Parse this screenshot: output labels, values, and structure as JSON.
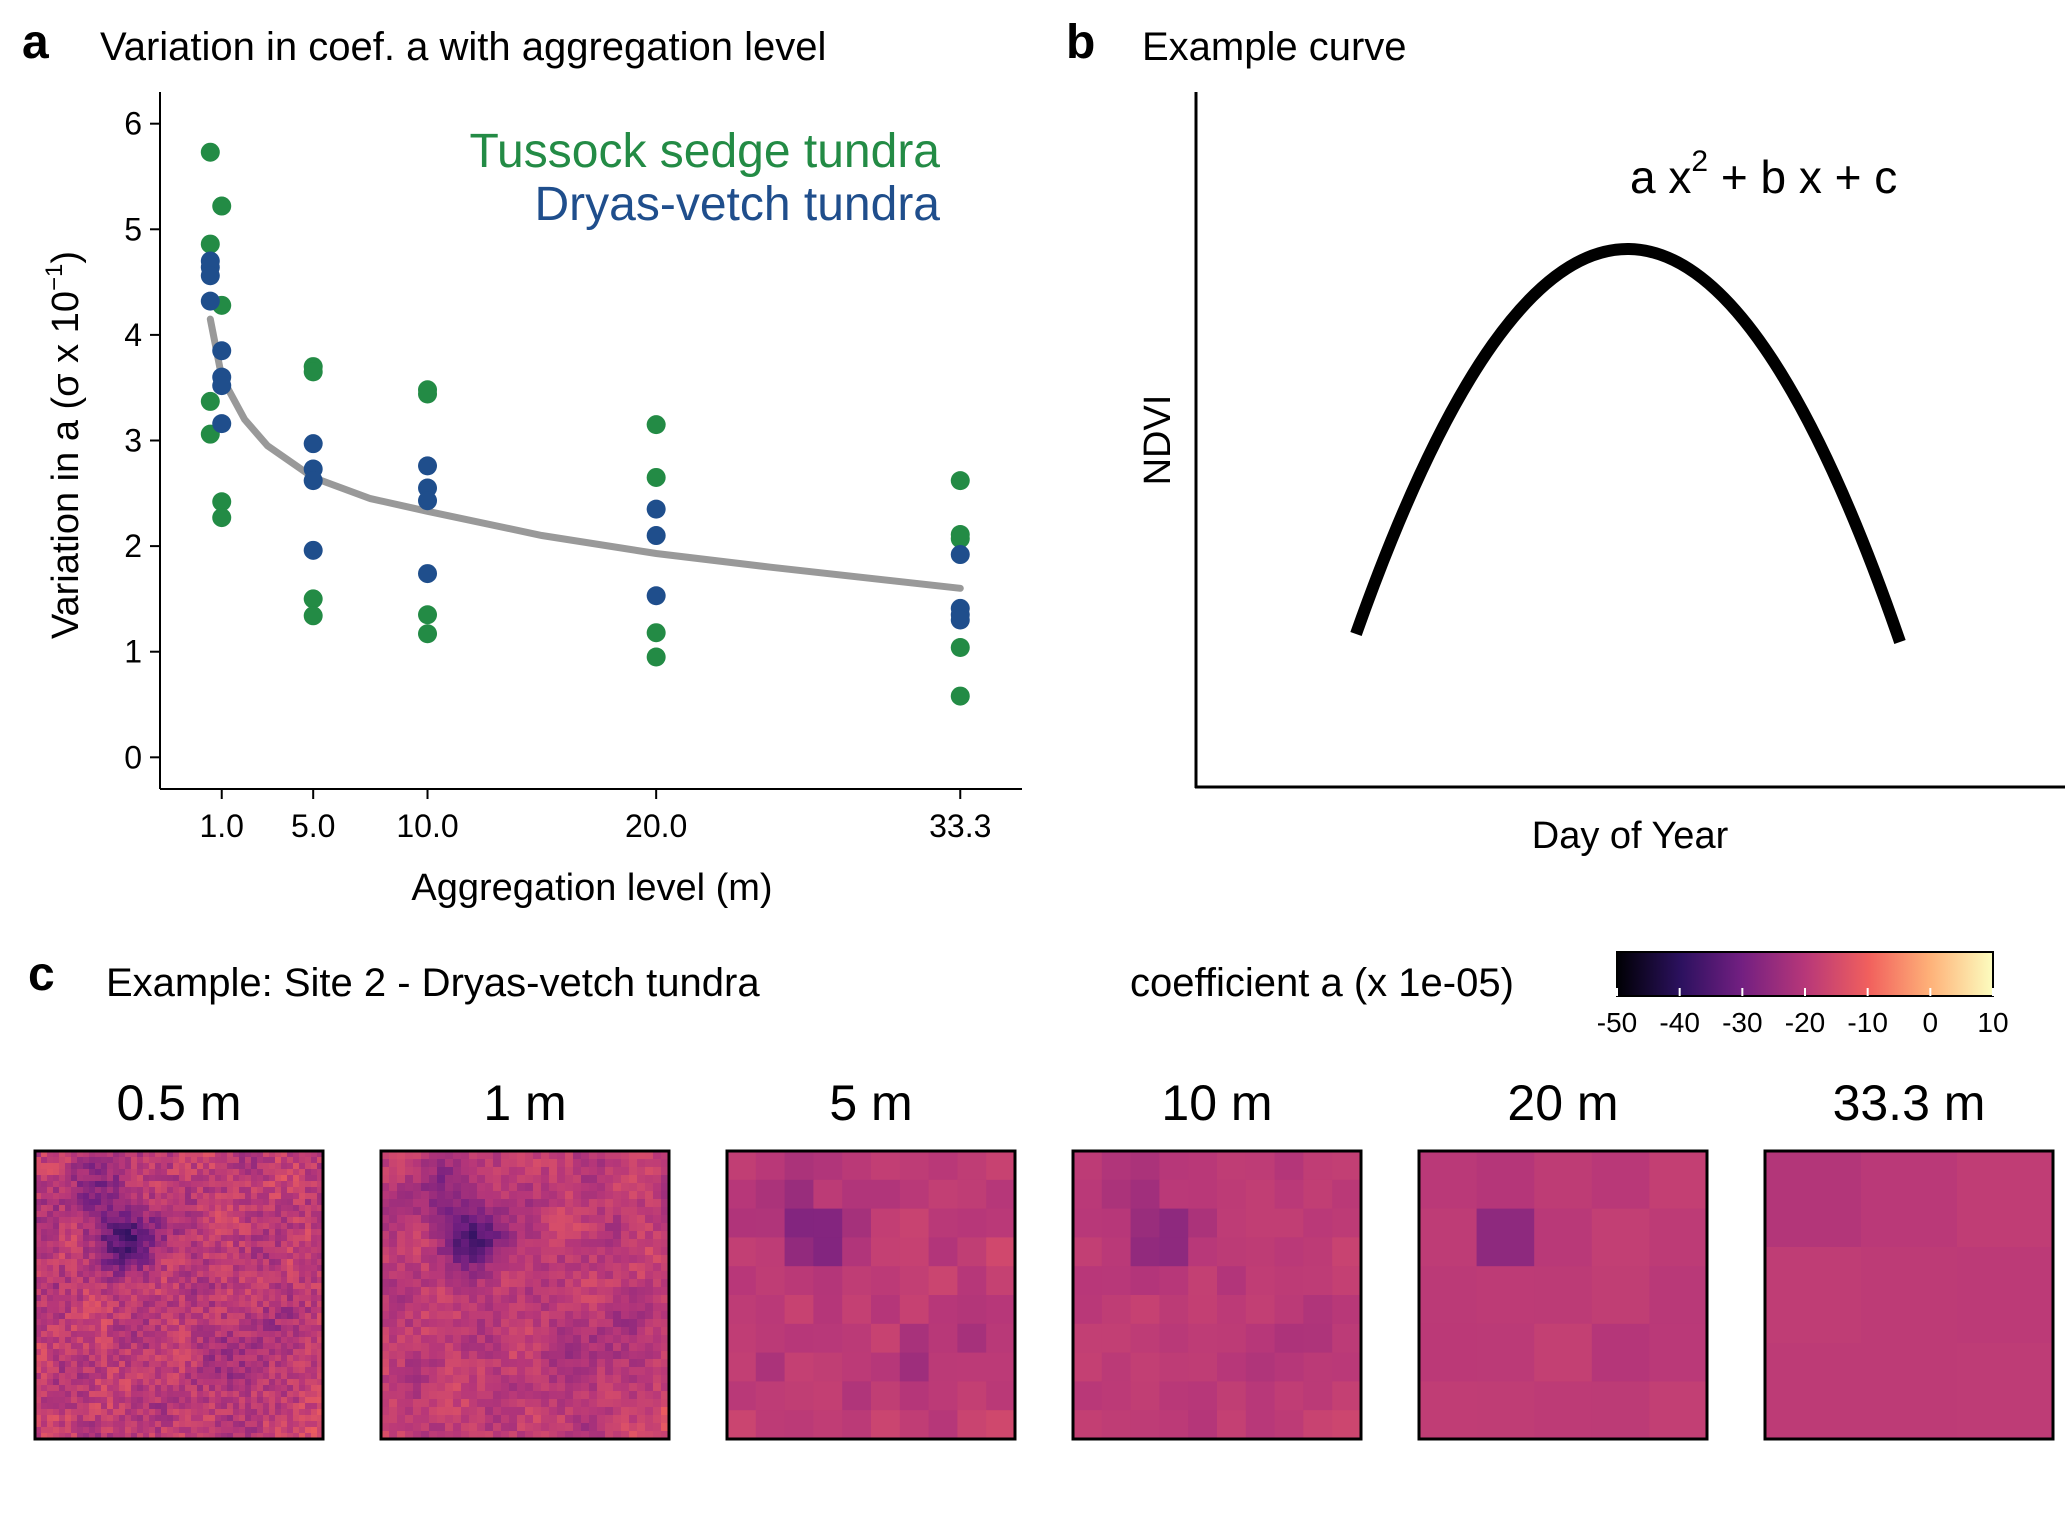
{
  "panel_a": {
    "letter": "a",
    "title": "Variation in coef. a with aggregation level",
    "legend": [
      {
        "label": "Tussock sedge tundra",
        "color": "#238b45"
      },
      {
        "label": "Dryas-vetch tundra",
        "color": "#1f4e8c"
      }
    ]
  },
  "panel_b": {
    "letter": "b",
    "title": "Example curve",
    "ylabel": "NDVI",
    "xlabel": "Day of Year",
    "equation": {
      "a": "a x",
      "sup": "2",
      "rest": " + b x + c"
    }
  },
  "panel_c": {
    "letter": "c",
    "title": "Example: Site 2 - Dryas-vetch tundra",
    "colorbar_title": "coefficient a (x 1e-05)",
    "colorbar_ticks": [
      "-50",
      "-40",
      "-30",
      "-20",
      "-10",
      "0",
      "10"
    ],
    "colormap": [
      "#000004",
      "#2c115f",
      "#721f81",
      "#b73779",
      "#f1605d",
      "#feb078",
      "#fcfdbf"
    ],
    "maps": [
      {
        "label": "0.5 m",
        "grid": 48
      },
      {
        "label": "1 m",
        "grid": 36
      },
      {
        "label": "5 m",
        "grid": 10
      },
      {
        "label": "10 m",
        "grid": 10
      },
      {
        "label": "20 m",
        "grid": 5
      },
      {
        "label": "33.3 m",
        "grid": 3
      }
    ]
  },
  "chart_data": {
    "type": "scatter",
    "title": "Variation in coef. a with aggregation level",
    "xlabel": "Aggregation level (m)",
    "ylabel": "Variation in a (σ x 10⁻¹)",
    "ylabel_parts": {
      "main": "Variation in a (σ x 10",
      "sup": "−1",
      "close": ")"
    },
    "x_ticks": [
      1.0,
      5.0,
      10.0,
      20.0,
      33.3
    ],
    "x_tick_labels": [
      "1.0",
      "5.0",
      "10.0",
      "20.0",
      "33.3"
    ],
    "y_ticks": [
      0,
      1,
      2,
      3,
      4,
      5,
      6
    ],
    "xlim": [
      -1.7,
      36
    ],
    "ylim": [
      -0.3,
      6.3
    ],
    "grid": false,
    "legend_position": "top-right",
    "series": [
      {
        "name": "Tussock sedge tundra",
        "color": "#238b45",
        "points": [
          [
            0.5,
            5.73
          ],
          [
            1.0,
            5.22
          ],
          [
            0.5,
            4.86
          ],
          [
            1.0,
            4.28
          ],
          [
            0.5,
            3.37
          ],
          [
            0.5,
            3.06
          ],
          [
            1.0,
            2.42
          ],
          [
            1.0,
            2.27
          ],
          [
            5.0,
            3.7
          ],
          [
            5.0,
            3.65
          ],
          [
            5.0,
            1.5
          ],
          [
            5.0,
            1.34
          ],
          [
            10.0,
            3.48
          ],
          [
            10.0,
            3.44
          ],
          [
            10.0,
            1.35
          ],
          [
            10.0,
            1.17
          ],
          [
            20.0,
            3.15
          ],
          [
            20.0,
            2.65
          ],
          [
            20.0,
            1.18
          ],
          [
            20.0,
            0.95
          ],
          [
            33.3,
            2.62
          ],
          [
            33.3,
            2.11
          ],
          [
            33.3,
            2.07
          ],
          [
            33.3,
            1.04
          ],
          [
            33.3,
            0.58
          ]
        ]
      },
      {
        "name": "Dryas-vetch tundra",
        "color": "#1f4e8c",
        "points": [
          [
            0.5,
            4.7
          ],
          [
            0.5,
            4.64
          ],
          [
            0.5,
            4.56
          ],
          [
            0.5,
            4.32
          ],
          [
            1.0,
            3.85
          ],
          [
            1.0,
            3.6
          ],
          [
            1.0,
            3.52
          ],
          [
            1.0,
            3.16
          ],
          [
            5.0,
            2.97
          ],
          [
            5.0,
            2.73
          ],
          [
            5.0,
            2.62
          ],
          [
            5.0,
            1.96
          ],
          [
            10.0,
            2.76
          ],
          [
            10.0,
            2.55
          ],
          [
            10.0,
            2.43
          ],
          [
            10.0,
            1.74
          ],
          [
            20.0,
            2.35
          ],
          [
            20.0,
            2.1
          ],
          [
            20.0,
            1.53
          ],
          [
            33.3,
            1.92
          ],
          [
            33.3,
            1.41
          ],
          [
            33.3,
            1.35
          ],
          [
            33.3,
            1.3
          ]
        ]
      }
    ],
    "fit": {
      "color": "#999999",
      "points": [
        [
          0.5,
          4.15
        ],
        [
          1.0,
          3.6
        ],
        [
          2.0,
          3.2
        ],
        [
          3.0,
          2.95
        ],
        [
          5.0,
          2.65
        ],
        [
          7.5,
          2.45
        ],
        [
          10.0,
          2.33
        ],
        [
          15.0,
          2.1
        ],
        [
          20.0,
          1.93
        ],
        [
          25.0,
          1.8
        ],
        [
          33.3,
          1.6
        ]
      ]
    }
  }
}
